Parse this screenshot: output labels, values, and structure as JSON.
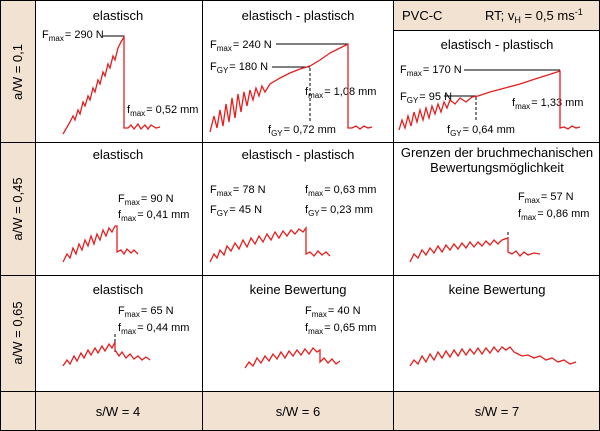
{
  "rows": [
    {
      "label": "a/W = 0,1"
    },
    {
      "label": "a/W = 0,45"
    },
    {
      "label": "a/W = 0,65"
    }
  ],
  "columns": [
    {
      "label": "s/W = 4"
    },
    {
      "label": "s/W = 6"
    },
    {
      "label": "s/W = 7"
    }
  ],
  "material": "PVC-C",
  "conditions": {
    "prefix": "RT; v",
    "sub": "H",
    "mid": " = 0,5 ms",
    "sup": "-1"
  },
  "cells": {
    "r1c1": {
      "title": "elastisch",
      "fmax": "= 290 N",
      "fmax_disp": "= 0,52 mm"
    },
    "r1c2": {
      "title": "elastisch - plastisch",
      "fmax": "= 240 N",
      "fgy": "= 180 N",
      "fmax_disp": "= 1,08 mm",
      "fgy_disp": "= 0,72 mm"
    },
    "r1c3": {
      "title": "elastisch - plastisch",
      "fmax": "= 170 N",
      "fgy": "= 95 N",
      "fmax_disp": "= 1,33 mm",
      "fgy_disp": "= 0,64 mm"
    },
    "r2c1": {
      "title": "elastisch",
      "fmax": "= 90 N",
      "fmax_disp": "= 0,41 mm"
    },
    "r2c2": {
      "title": "elastisch - plastisch",
      "fmax": "= 78 N",
      "fgy": "= 45 N",
      "fmax_disp": "= 0,63 mm",
      "fgy_disp": "= 0,23 mm"
    },
    "r2c3": {
      "title_line1": "Grenzen der bruchmechanischen",
      "title_line2": "Bewertungsmöglichkeit",
      "fmax": "= 57 N",
      "fmax_disp": "= 0,86 mm"
    },
    "r3c1": {
      "title": "elastisch",
      "fmax": "= 65 N",
      "fmax_disp": "= 0,44 mm"
    },
    "r3c2": {
      "title": "keine Bewertung",
      "fmax": "= 40 N",
      "fmax_disp": "= 0,65 mm"
    },
    "r3c3": {
      "title": "keine Bewertung"
    }
  },
  "symbols": {
    "F": "F",
    "f": "f",
    "max": "max",
    "GY": "GY"
  },
  "colors": {
    "curve": "#e41e1e",
    "label_bg": "#f2e2d2",
    "grid": "#000000"
  }
}
